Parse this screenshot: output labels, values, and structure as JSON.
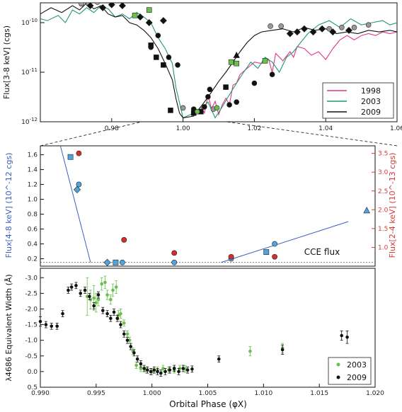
{
  "chart_data": [
    {
      "type": "line",
      "ylabel": "Flux[3-8 keV] (cgs)",
      "xlim": [
        0.96,
        1.06
      ],
      "ylim_log10": [
        -12,
        -9.6
      ],
      "xticks": [
        "0.98",
        "1.00",
        "1.02",
        "1.04",
        "1.06"
      ],
      "yticks": [
        "10^-12",
        "10^-11",
        "10^-10"
      ],
      "legend_position": "lower-right",
      "series": [
        {
          "name": "1998",
          "color": "#e0338c",
          "x": [
            1.003,
            1.005,
            1.006,
            1.007,
            1.008,
            1.009,
            1.01,
            1.011,
            1.012,
            1.013,
            1.014,
            1.015,
            1.016,
            1.018,
            1.02,
            1.022,
            1.024,
            1.025,
            1.026,
            1.028,
            1.03,
            1.031,
            1.032,
            1.034,
            1.036,
            1.038,
            1.04,
            1.042,
            1.044,
            1.046,
            1.048,
            1.05,
            1.052,
            1.054,
            1.056,
            1.058,
            1.06
          ],
          "y": [
            1.4e-12,
            2e-12,
            1.5e-12,
            3.5e-12,
            1.8e-12,
            2.6e-12,
            1.4e-12,
            2.2e-12,
            3e-12,
            2.2e-12,
            5.5e-12,
            6e-12,
            9e-12,
            1.2e-11,
            1.6e-11,
            1.5e-11,
            1.8e-11,
            1e-11,
            2.4e-11,
            1.7e-11,
            2.6e-11,
            2e-11,
            3.3e-11,
            3e-11,
            2.2e-11,
            2.6e-11,
            1.8e-11,
            3e-11,
            4.5e-11,
            5.5e-11,
            4.5e-11,
            5.5e-11,
            6e-11,
            5.5e-11,
            6.5e-11,
            6e-11,
            6.5e-11
          ]
        },
        {
          "name": "2003",
          "color": "#1e9a6e",
          "x": [
            0.96,
            0.962,
            0.965,
            0.967,
            0.969,
            0.971,
            0.973,
            0.975,
            0.977,
            0.979,
            0.981,
            0.983,
            0.985,
            0.987,
            0.989,
            0.991,
            0.993,
            0.995,
            0.997,
            0.998,
            1.0,
            1.003,
            1.005,
            1.007,
            1.009,
            1.011,
            1.013,
            1.015,
            1.017,
            1.019,
            1.021,
            1.023,
            1.025,
            1.027,
            1.029,
            1.031,
            1.033,
            1.035,
            1.038,
            1.041,
            1.044,
            1.047,
            1.05,
            1.053,
            1.056,
            1.058,
            1.06
          ],
          "y": [
            1.2e-10,
            1.1e-10,
            1.4e-10,
            1e-10,
            1.8e-10,
            1.5e-10,
            2e-10,
            1.6e-10,
            2.2e-10,
            1.9e-10,
            1.3e-10,
            1.5e-10,
            1.2e-10,
            1.6e-10,
            1.3e-10,
            1e-10,
            5e-11,
            3e-11,
            1.5e-11,
            5e-12,
            1.2e-12,
            1.5e-12,
            1.8e-12,
            2.5e-12,
            1.2e-12,
            2e-12,
            3.5e-12,
            6e-12,
            1e-11,
            1.6e-11,
            1.2e-11,
            2e-11,
            1.6e-11,
            1e-11,
            2e-11,
            2.6e-11,
            4e-11,
            6e-11,
            9e-11,
            1.1e-10,
            8e-11,
            1.2e-10,
            9e-11,
            1e-10,
            1.1e-10,
            9e-11,
            1e-10
          ]
        },
        {
          "name": "2009",
          "color": "#111111",
          "x": [
            0.96,
            0.963,
            0.966,
            0.969,
            0.971,
            0.973,
            0.975,
            0.977,
            0.979,
            0.981,
            0.983,
            0.985,
            0.987,
            0.989,
            0.991,
            0.993,
            0.995,
            0.997,
            0.998,
            0.999,
            1.0,
            1.003,
            1.006,
            1.008,
            1.01,
            1.012,
            1.014,
            1.016,
            1.018,
            1.02,
            1.022,
            1.025,
            1.028,
            1.031,
            1.034,
            1.037,
            1.04,
            1.043,
            1.046,
            1.049,
            1.052,
            1.055,
            1.058,
            1.06
          ],
          "y": [
            1.5e-10,
            2e-10,
            1.6e-10,
            2.2e-10,
            1.8e-10,
            2.5e-10,
            1.9e-10,
            2.2e-10,
            1.5e-10,
            1.3e-10,
            1.4e-10,
            1e-10,
            9e-11,
            7e-11,
            5e-11,
            3e-11,
            1.5e-11,
            7e-12,
            3e-12,
            1.5e-12,
            1.2e-12,
            1.3e-12,
            2.5e-12,
            4e-12,
            6.5e-12,
            1e-11,
            1.6e-11,
            2.6e-11,
            4e-11,
            5.5e-11,
            6.5e-11,
            7e-11,
            7.5e-11,
            6.5e-11,
            8e-11,
            7e-11,
            7.5e-11,
            6e-11,
            6.5e-11,
            6e-11,
            7e-11,
            6.5e-11,
            7e-11,
            6.5e-11
          ]
        }
      ],
      "markers": [
        {
          "shape": "circle",
          "color": "#999999",
          "x": [
            0.9715,
            0.9735,
            0.976,
            1.0245,
            1.0275,
            1.041,
            1.0445,
            1.048,
            1.052,
            1.0,
            1.0085
          ],
          "y": [
            2.4e-10,
            2.4e-10,
            2.6e-10,
            8.5e-11,
            8.5e-11,
            7.5e-11,
            8e-11,
            8e-11,
            9e-11,
            1.9e-12,
            1.8e-12
          ]
        },
        {
          "shape": "diamond",
          "color": "#111111",
          "x": [
            0.974,
            0.9775,
            0.98,
            0.983,
            0.988,
            1.03,
            1.032,
            1.034,
            1.0365,
            1.039,
            1.042,
            1.0465,
            0.9905,
            0.9945
          ],
          "y": [
            2.2e-10,
            2e-10,
            2.3e-10,
            2.2e-10,
            1.3e-10,
            6e-11,
            6.5e-11,
            7.5e-11,
            6.5e-11,
            7.5e-11,
            6.5e-11,
            7e-11,
            1e-10,
            1.1e-10
          ]
        },
        {
          "shape": "circle",
          "color": "#111111",
          "x": [
            0.991,
            0.993,
            0.996,
            0.9985,
            1.003,
            1.006,
            1.007,
            1.0075,
            1.013,
            1.015,
            1.02,
            1.025
          ],
          "y": [
            3.2e-11,
            5.5e-11,
            2e-11,
            1.4e-11,
            1.8e-12,
            2e-12,
            3.2e-12,
            4.5e-12,
            2.2e-12,
            2.5e-12,
            6e-12,
            9e-12
          ]
        },
        {
          "shape": "square",
          "color": "#111111",
          "x": [
            0.991,
            0.9925,
            0.9945,
            0.9965,
            1.003,
            1.005,
            1.012
          ],
          "y": [
            3.5e-11,
            2e-11,
            1.4e-11,
            1.7e-12,
            1.5e-12,
            1.6e-12,
            5e-12
          ]
        },
        {
          "shape": "square",
          "color": "#6bbf4b",
          "x": [
            0.9865,
            0.9905,
            1.0135,
            1.015,
            1.023
          ],
          "y": [
            1.4e-10,
            1.8e-10,
            1.6e-11,
            1.5e-11,
            1.7e-11
          ]
        },
        {
          "shape": "circle",
          "color": "#6bbf4b",
          "x": [
            1.004,
            1.0095
          ],
          "y": [
            1.6e-12,
            1.9e-12
          ]
        },
        {
          "shape": "triangle",
          "color": "#111111",
          "x": [
            1.015
          ],
          "y": [
            2.2e-11
          ]
        }
      ]
    },
    {
      "type": "scatter",
      "ylabel_left": "Flux[4-8 keV] (10^-12 cgs)",
      "ylabel_right": "Flux[2-4 keV] (10^-13 cgs)",
      "xlim": [
        0.995,
        1.015
      ],
      "ylim_left": [
        0.1,
        1.72
      ],
      "ylim_right": [
        0.5,
        3.7
      ],
      "yticks_left": [
        "0.2",
        "0.4",
        "0.6",
        "0.8",
        "1.0",
        "1.2",
        "1.4",
        "1.6"
      ],
      "yticks_right": [
        "1.0",
        "1.5",
        "2.0",
        "2.5",
        "3.0",
        "3.5"
      ],
      "left_axis_color": "#3a5fbf",
      "right_axis_color": "#d23a3a",
      "annotation": "CCE flux",
      "threshold_left": 0.15,
      "fit_lines": [
        {
          "x": [
            0.9962,
            0.998
          ],
          "y": [
            1.72,
            0.15
          ]
        },
        {
          "x": [
            1.0058,
            1.0134
          ],
          "y": [
            0.15,
            0.7
          ]
        }
      ],
      "points_left": [
        {
          "shape": "square",
          "x": 0.9968,
          "y": 1.57
        },
        {
          "shape": "circle",
          "x": 0.9973,
          "y": 1.2
        },
        {
          "shape": "diamond",
          "x": 0.9972,
          "y": 1.13
        },
        {
          "shape": "diamond",
          "x": 0.999,
          "y": 0.15
        },
        {
          "shape": "square",
          "x": 0.9995,
          "y": 0.15
        },
        {
          "shape": "circle",
          "x": 0.9999,
          "y": 0.15
        },
        {
          "shape": "circle",
          "x": 1.003,
          "y": 0.15
        },
        {
          "shape": "circle",
          "x": 1.0064,
          "y": 0.2
        },
        {
          "shape": "square",
          "x": 1.0085,
          "y": 0.29
        },
        {
          "shape": "circle",
          "x": 1.009,
          "y": 0.4
        },
        {
          "shape": "triangle",
          "x": 1.0145,
          "y": 0.85
        }
      ],
      "points_right": [
        {
          "x": 0.9973,
          "y": 3.5
        },
        {
          "x": 1.0,
          "y": 1.2
        },
        {
          "x": 1.003,
          "y": 0.85
        },
        {
          "x": 1.0064,
          "y": 0.75
        },
        {
          "x": 1.009,
          "y": 0.75
        }
      ]
    },
    {
      "type": "scatter",
      "ylabel": "λ4686 Equivalent Width (Å)",
      "xlabel": "Orbital Phase (φX)",
      "xlim": [
        0.99,
        1.02
      ],
      "ylim": [
        0.5,
        -3.3
      ],
      "xticks": [
        "0.990",
        "0.995",
        "1.000",
        "1.005",
        "1.010",
        "1.015",
        "1.020"
      ],
      "yticks": [
        "-3.0",
        "-2.5",
        "-2.0",
        "-1.5",
        "-1.0",
        "-0.5",
        "0.0",
        "0.5"
      ],
      "legend_position": "lower-right",
      "series": [
        {
          "name": "2003",
          "color": "#6bbf4b",
          "x": [
            0.9942,
            0.9945,
            0.9948,
            0.995,
            0.9952,
            0.9955,
            0.9958,
            0.996,
            0.9963,
            0.9965,
            0.9968,
            0.997,
            0.9972,
            0.9975,
            0.9978,
            0.998,
            0.9983,
            0.9986,
            0.999,
            0.9995,
            1.0,
            1.0005,
            1.001,
            1.0015,
            1.002,
            1.0025,
            1.003,
            1.0088,
            1.0117
          ],
          "y": [
            -2.4,
            -2.3,
            -2.35,
            -2.2,
            -2.3,
            -2.8,
            -2.85,
            -2.45,
            -2.3,
            -2.6,
            -2.7,
            -1.8,
            -1.85,
            -1.55,
            -1.2,
            -1.0,
            -0.65,
            -0.2,
            -0.1,
            -0.05,
            0.0,
            -0.05,
            -0.1,
            -0.05,
            -0.05,
            -0.1,
            -0.08,
            -0.65,
            -0.75
          ],
          "err": [
            0.6,
            0.3,
            0.4,
            0.3,
            0.2,
            0.2,
            0.2,
            0.15,
            0.15,
            0.2,
            0.2,
            0.15,
            0.15,
            0.1,
            0.1,
            0.1,
            0.1,
            0.1,
            0.1,
            0.1,
            0.1,
            0.1,
            0.1,
            0.1,
            0.1,
            0.1,
            0.1,
            0.15,
            0.15
          ]
        },
        {
          "name": "2009",
          "color": "#111111",
          "x": [
            0.99,
            0.9905,
            0.991,
            0.9915,
            0.992,
            0.9925,
            0.9928,
            0.9932,
            0.9936,
            0.994,
            0.9944,
            0.9948,
            0.9952,
            0.9956,
            0.996,
            0.9963,
            0.9966,
            0.9969,
            0.9972,
            0.9975,
            0.9978,
            0.9981,
            0.9984,
            0.9987,
            0.999,
            0.9993,
            0.9996,
            0.9999,
            1.0002,
            1.0005,
            1.0008,
            1.0012,
            1.0016,
            1.002,
            1.0024,
            1.0028,
            1.0032,
            1.0036,
            1.006,
            1.0117,
            1.017,
            1.0175
          ],
          "y": [
            -1.6,
            -1.5,
            -1.45,
            -1.45,
            -1.85,
            -2.6,
            -2.7,
            -2.75,
            -2.5,
            -2.6,
            -2.4,
            -2.1,
            -2.45,
            -1.95,
            -1.85,
            -1.7,
            -1.9,
            -1.7,
            -1.5,
            -1.2,
            -1.0,
            -0.8,
            -0.6,
            -0.4,
            -0.25,
            -0.1,
            -0.05,
            0.0,
            -0.05,
            0.0,
            0.05,
            0.0,
            -0.05,
            -0.1,
            0.0,
            -0.1,
            -0.05,
            -0.08,
            -0.4,
            -0.7,
            -1.15,
            -1.1
          ],
          "err": [
            0.15,
            0.1,
            0.1,
            0.1,
            0.1,
            0.1,
            0.1,
            0.1,
            0.1,
            0.1,
            0.1,
            0.1,
            0.1,
            0.1,
            0.1,
            0.1,
            0.1,
            0.1,
            0.1,
            0.1,
            0.1,
            0.1,
            0.1,
            0.1,
            0.1,
            0.1,
            0.1,
            0.1,
            0.1,
            0.1,
            0.1,
            0.1,
            0.1,
            0.1,
            0.1,
            0.1,
            0.1,
            0.1,
            0.1,
            0.15,
            0.15,
            0.2
          ]
        }
      ]
    }
  ]
}
